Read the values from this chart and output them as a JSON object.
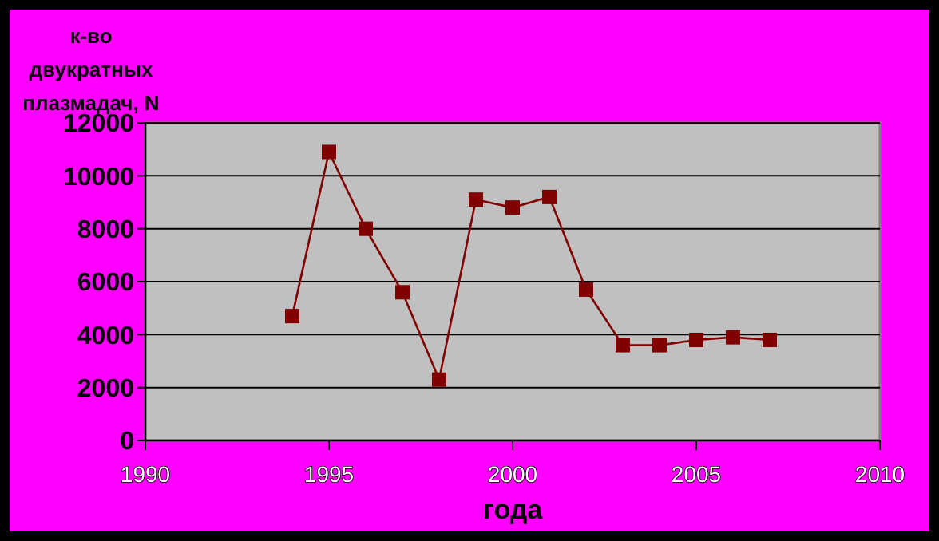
{
  "chart_data": {
    "type": "line",
    "ylabel": "к-во двукратных плазмадач, N",
    "xlabel": "года",
    "x": [
      1994,
      1995,
      1996,
      1997,
      1998,
      1999,
      2000,
      2001,
      2002,
      2003,
      2004,
      2005,
      2006,
      2007
    ],
    "series": [
      {
        "color": "#800000",
        "values": [
          4700,
          10900,
          8000,
          5600,
          2300,
          9100,
          8800,
          9200,
          5700,
          3600,
          3600,
          3800,
          3900,
          3800
        ]
      }
    ],
    "xlim": [
      1990,
      2010
    ],
    "xticks": [
      1990,
      1995,
      2000,
      2005,
      2010
    ],
    "ylim": [
      0,
      12000
    ],
    "yticks": [
      0,
      2000,
      4000,
      6000,
      8000,
      10000,
      12000
    ],
    "grid": "y",
    "marker": "square",
    "line_style": "solid"
  }
}
